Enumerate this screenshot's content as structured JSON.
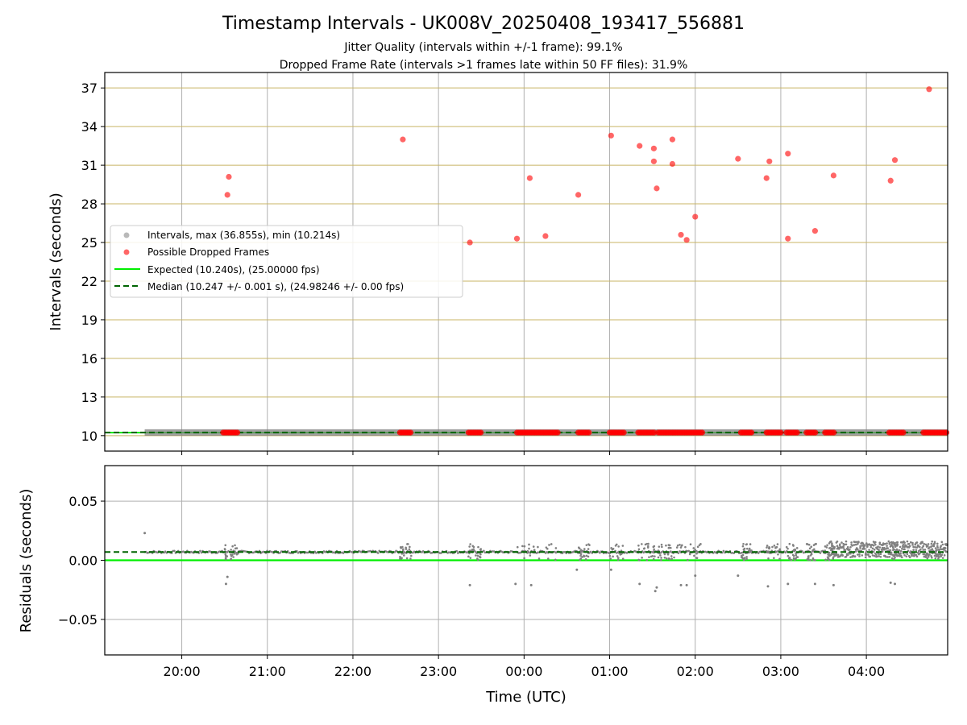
{
  "chart_data": {
    "type": "scatter",
    "title": "Timestamp Intervals - UK008V_20250408_193417_556881",
    "subtitle_lines": [
      "Jitter Quality (intervals within +/-1 frame): 99.1%",
      "Dropped Frame Rate (intervals >1 frames late within 50 FF files): 31.9%"
    ],
    "xlabel": "Time (UTC)",
    "x_tick_labels": [
      "20:00",
      "21:00",
      "22:00",
      "23:00",
      "00:00",
      "01:00",
      "02:00",
      "03:00",
      "04:00"
    ],
    "top_panel": {
      "ylabel": "Intervals (seconds)",
      "ylim": [
        8.8,
        38.2
      ],
      "y_ticks": [
        10,
        13,
        16,
        19,
        22,
        25,
        28,
        31,
        34,
        37
      ],
      "legend": {
        "placement": "center-left",
        "entries": [
          "Intervals, max (36.855s), min (10.214s)",
          "Possible Dropped Frames",
          "Expected (10.240s), (25.00000 fps)",
          "Median (10.247 +/- 0.001 s), (24.98246 +/- 0.00 fps)"
        ]
      },
      "expected_value": 10.24,
      "median_value": 10.247,
      "dropped_frames": [
        {
          "t": "20:33",
          "y": 30.1
        },
        {
          "t": "20:32",
          "y": 28.7
        },
        {
          "t": "22:35",
          "y": 33.0
        },
        {
          "t": "23:22",
          "y": 25.0
        },
        {
          "t": "23:55",
          "y": 25.3
        },
        {
          "t": "00:04",
          "y": 30.0
        },
        {
          "t": "00:15",
          "y": 25.5
        },
        {
          "t": "00:38",
          "y": 28.7
        },
        {
          "t": "01:01",
          "y": 33.3
        },
        {
          "t": "01:21",
          "y": 32.5
        },
        {
          "t": "01:31",
          "y": 32.3
        },
        {
          "t": "01:31",
          "y": 31.3
        },
        {
          "t": "01:33",
          "y": 29.2
        },
        {
          "t": "01:44",
          "y": 33.0
        },
        {
          "t": "01:44",
          "y": 31.1
        },
        {
          "t": "01:50",
          "y": 25.6
        },
        {
          "t": "01:54",
          "y": 25.2
        },
        {
          "t": "02:00",
          "y": 27.0
        },
        {
          "t": "02:30",
          "y": 31.5
        },
        {
          "t": "02:50",
          "y": 30.0
        },
        {
          "t": "02:52",
          "y": 31.3
        },
        {
          "t": "03:05",
          "y": 31.9
        },
        {
          "t": "03:05",
          "y": 25.3
        },
        {
          "t": "03:24",
          "y": 25.9
        },
        {
          "t": "03:37",
          "y": 30.2
        },
        {
          "t": "04:17",
          "y": 29.8
        },
        {
          "t": "04:20",
          "y": 31.4
        },
        {
          "t": "04:44",
          "y": 36.9
        }
      ],
      "dropped_clusters_at_10": [
        [
          "20:29",
          "20:40"
        ],
        [
          "22:33",
          "22:41"
        ],
        [
          "23:21",
          "23:30"
        ],
        [
          "23:55",
          "00:24"
        ],
        [
          "00:38",
          "00:46"
        ],
        [
          "01:00",
          "01:10"
        ],
        [
          "01:20",
          "01:32"
        ],
        [
          "01:34",
          "01:44"
        ],
        [
          "01:45",
          "02:06"
        ],
        [
          "02:32",
          "02:40"
        ],
        [
          "02:50",
          "03:00"
        ],
        [
          "03:04",
          "03:12"
        ],
        [
          "03:18",
          "03:25"
        ],
        [
          "03:31",
          "03:38"
        ],
        [
          "04:16",
          "04:27"
        ],
        [
          "04:40",
          "04:57"
        ]
      ]
    },
    "bottom_panel": {
      "ylabel": "Residuals (seconds)",
      "ylim": [
        -0.08,
        0.08
      ],
      "y_ticks": [
        0.05,
        0.0,
        -0.05
      ],
      "y_tick_labels": [
        "0.05",
        "0.00",
        "−0.05"
      ],
      "expected_value": 0.0,
      "median_value": 0.007,
      "outliers": [
        {
          "t": "19:34",
          "y": 0.023
        },
        {
          "t": "20:32",
          "y": -0.014
        },
        {
          "t": "20:31",
          "y": -0.02
        },
        {
          "t": "23:22",
          "y": -0.021
        },
        {
          "t": "23:54",
          "y": -0.02
        },
        {
          "t": "00:05",
          "y": -0.021
        },
        {
          "t": "00:37",
          "y": -0.008
        },
        {
          "t": "01:01",
          "y": -0.008
        },
        {
          "t": "01:21",
          "y": -0.02
        },
        {
          "t": "01:32",
          "y": -0.026
        },
        {
          "t": "01:33",
          "y": -0.023
        },
        {
          "t": "01:50",
          "y": -0.021
        },
        {
          "t": "01:54",
          "y": -0.021
        },
        {
          "t": "02:00",
          "y": -0.013
        },
        {
          "t": "02:30",
          "y": -0.013
        },
        {
          "t": "02:51",
          "y": -0.022
        },
        {
          "t": "03:05",
          "y": -0.02
        },
        {
          "t": "03:24",
          "y": -0.02
        },
        {
          "t": "03:37",
          "y": -0.021
        },
        {
          "t": "04:17",
          "y": -0.019
        },
        {
          "t": "04:20",
          "y": -0.02
        }
      ],
      "dense_region": [
        "03:34",
        "04:57"
      ]
    },
    "x_range": [
      "19:06",
      "04:57"
    ],
    "grid": true,
    "colors": {
      "intervals": "#808080",
      "dropped": "#ff0000",
      "expected": "#00ee00",
      "median": "#006400",
      "hgrid_top": "#c8b464",
      "grid": "#b0b0b0"
    }
  }
}
